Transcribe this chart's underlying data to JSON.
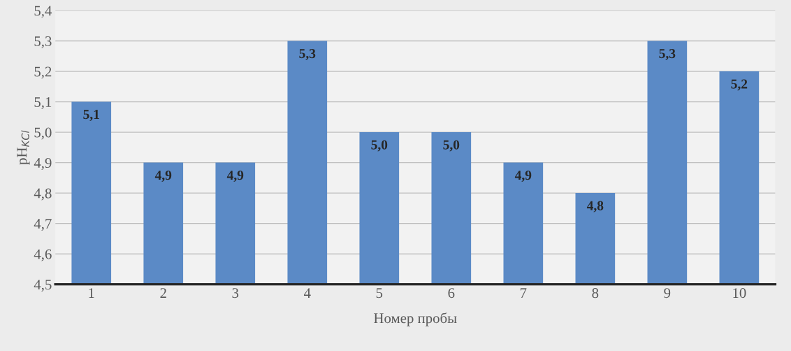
{
  "chart_data": {
    "type": "bar",
    "xlabel": "Номер пробы",
    "ylabel": "pH$_{KCl}$",
    "categories": [
      "1",
      "2",
      "3",
      "4",
      "5",
      "6",
      "7",
      "8",
      "9",
      "10"
    ],
    "values": [
      5.1,
      4.9,
      4.9,
      5.3,
      5.0,
      5.0,
      4.9,
      4.8,
      5.3,
      5.2
    ],
    "value_labels": [
      "5,1",
      "4,9",
      "4,9",
      "5,3",
      "5,0",
      "5,0",
      "4,9",
      "4,8",
      "5,3",
      "5,2"
    ],
    "color": "#5b8ac6",
    "ylim": [
      4.5,
      5.4
    ],
    "yticks": [
      {
        "value": 4.5,
        "label": "4,5"
      },
      {
        "value": 4.6,
        "label": "4,6"
      },
      {
        "value": 4.7,
        "label": "4,7"
      },
      {
        "value": 4.8,
        "label": "4,8"
      },
      {
        "value": 4.9,
        "label": "4,9"
      },
      {
        "value": 5.0,
        "label": "5,0"
      },
      {
        "value": 5.1,
        "label": "5,1"
      },
      {
        "value": 5.2,
        "label": "5,2"
      },
      {
        "value": 5.3,
        "label": "5,3"
      },
      {
        "value": 5.4,
        "label": "5,4"
      }
    ],
    "grid": "y"
  }
}
